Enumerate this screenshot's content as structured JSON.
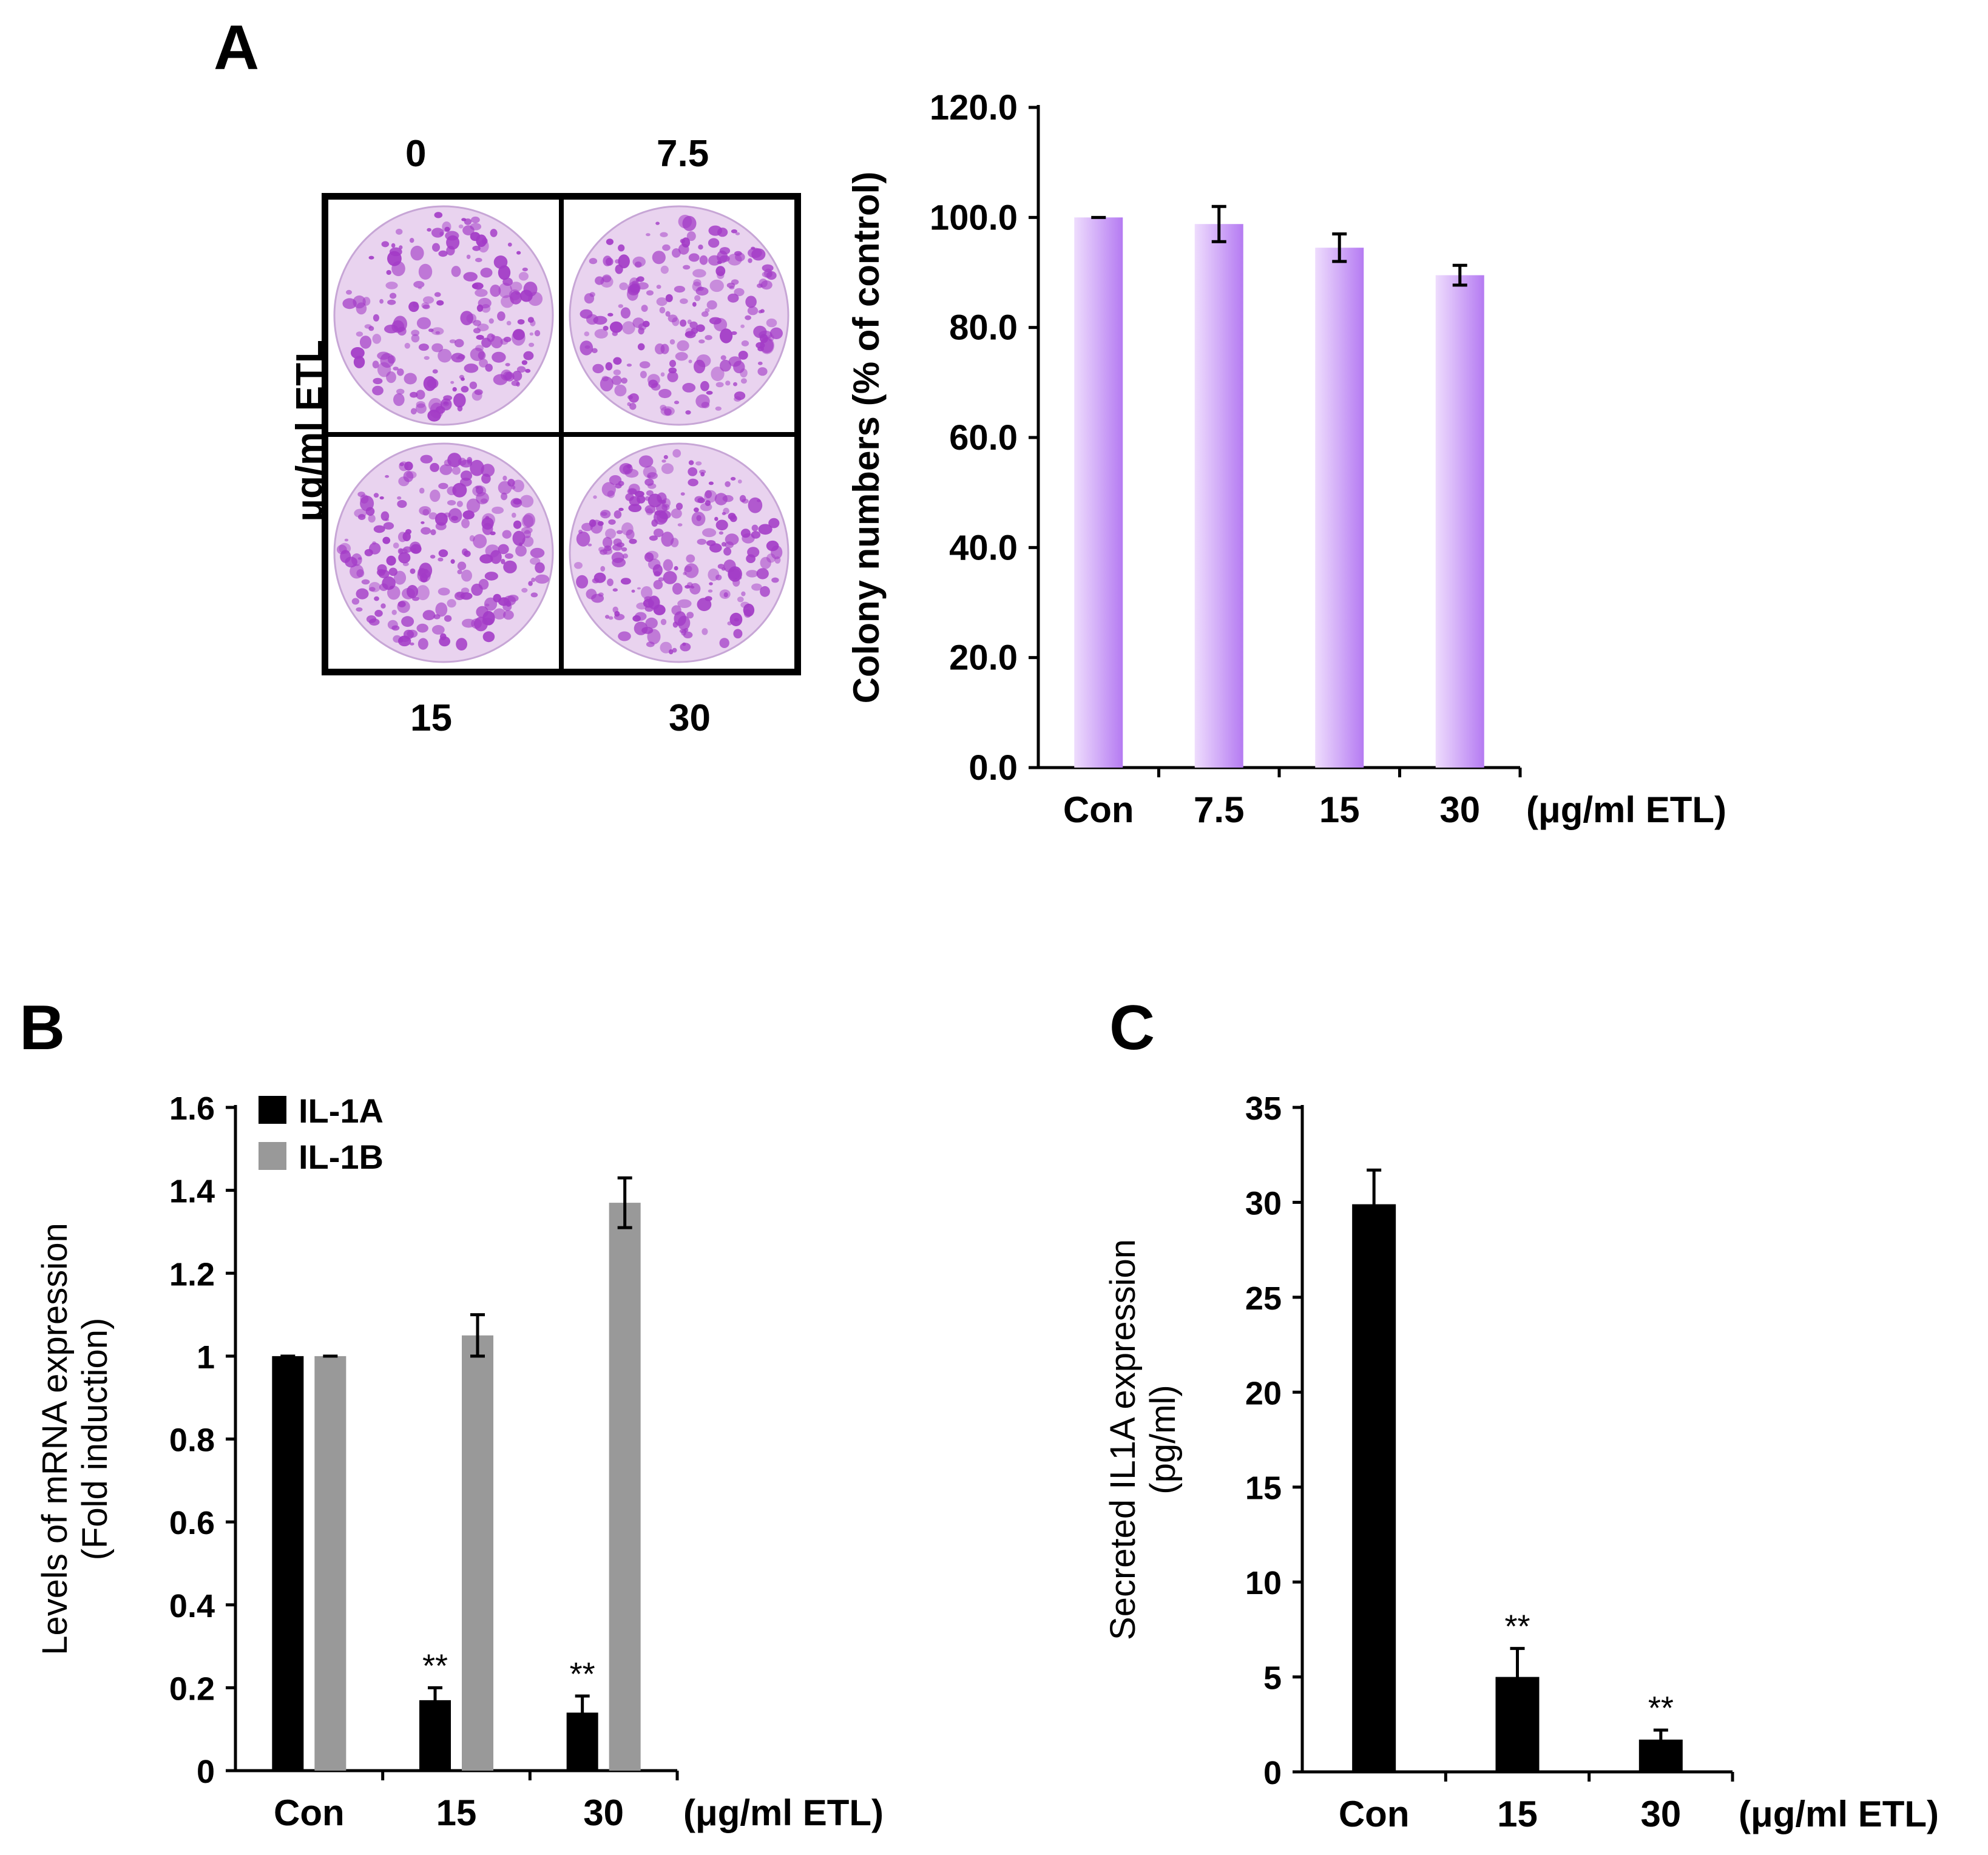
{
  "panels": {
    "a_label": "A",
    "b_label": "B",
    "c_label": "C"
  },
  "plates": {
    "axis_label": "μg/ml ETL",
    "doses": [
      "0",
      "7.5",
      "15",
      "30"
    ]
  },
  "colors": {
    "purple_bar_dark": "#b57bf2",
    "purple_bar_light": "#eedcfd",
    "stain": "#a33bc7",
    "il1a": "#000000",
    "il1b": "#999999"
  },
  "chart_data": [
    {
      "id": "A",
      "type": "bar",
      "title": "",
      "xlabel": "(μg/ml ETL)",
      "ylabel": "Colony numbers (% of control)",
      "categories": [
        "Con",
        "7.5",
        "15",
        "30"
      ],
      "series": [
        {
          "name": "Colony numbers",
          "values": [
            100.0,
            98.8,
            94.5,
            89.5
          ],
          "errors": [
            0.0,
            3.2,
            2.5,
            1.8
          ]
        }
      ],
      "ylim": [
        0,
        120
      ],
      "yticks": [
        "0.0",
        "20.0",
        "40.0",
        "60.0",
        "80.0",
        "100.0",
        "120.0"
      ],
      "annotations": []
    },
    {
      "id": "B",
      "type": "bar",
      "title": "",
      "xlabel": "(μg/ml ETL)",
      "ylabel": "Levels of mRNA expression",
      "ylabel2": "(Fold induction)",
      "categories": [
        "Con",
        "15",
        "30"
      ],
      "series": [
        {
          "name": "IL-1A",
          "values": [
            1.0,
            0.17,
            0.14
          ],
          "errors": [
            0.0,
            0.03,
            0.04
          ]
        },
        {
          "name": "IL-1B",
          "values": [
            1.0,
            1.05,
            1.37
          ],
          "errors": [
            0.0,
            0.05,
            0.06
          ]
        }
      ],
      "ylim": [
        0,
        1.6
      ],
      "yticks": [
        "0",
        "0.2",
        "0.4",
        "0.6",
        "0.8",
        "1",
        "1.2",
        "1.4",
        "1.6"
      ],
      "annotations": [
        "",
        "**",
        "**"
      ],
      "legend": "top-left"
    },
    {
      "id": "C",
      "type": "bar",
      "title": "",
      "xlabel": "(μg/ml ETL)",
      "ylabel": "Secreted IL1A expression",
      "ylabel2": "(pg/ml)",
      "categories": [
        "Con",
        "15",
        "30"
      ],
      "series": [
        {
          "name": "Secreted IL1A",
          "values": [
            29.9,
            5.0,
            1.7
          ],
          "errors": [
            1.8,
            1.5,
            0.5
          ]
        }
      ],
      "ylim": [
        0,
        35
      ],
      "yticks": [
        "0",
        "5",
        "10",
        "15",
        "20",
        "25",
        "30",
        "35"
      ],
      "annotations": [
        "",
        "**",
        "**"
      ]
    }
  ]
}
